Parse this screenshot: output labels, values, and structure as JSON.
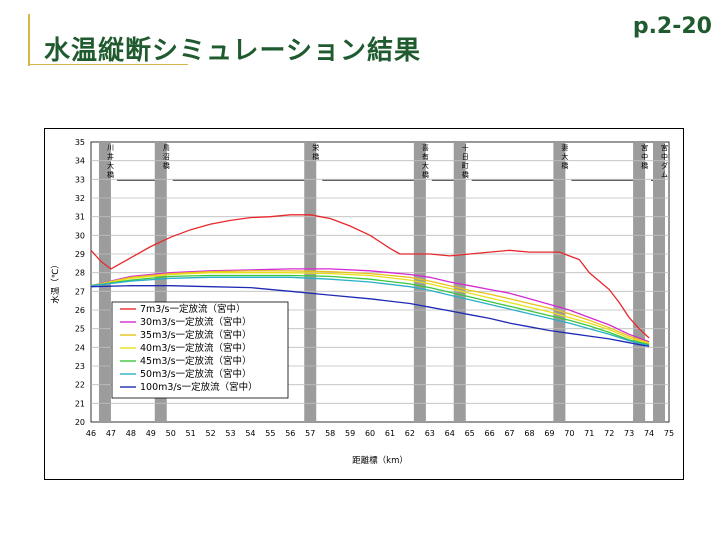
{
  "header": {
    "title": "水温縦断シミュレーション結果",
    "page_number": "p.2-20"
  },
  "chart_data": {
    "type": "line",
    "xlabel": "距離標（km）",
    "ylabel": "水温（℃）",
    "xlim": [
      46,
      75
    ],
    "ylim": [
      20,
      35
    ],
    "x_ticks": [
      46,
      47,
      48,
      49,
      50,
      51,
      52,
      53,
      54,
      55,
      56,
      57,
      58,
      59,
      60,
      61,
      62,
      63,
      64,
      65,
      66,
      67,
      68,
      69,
      70,
      71,
      72,
      73,
      74,
      75
    ],
    "y_ticks": [
      20,
      21,
      22,
      23,
      24,
      25,
      26,
      27,
      28,
      29,
      30,
      31,
      32,
      33,
      34,
      35
    ],
    "legend_position": "lower-left",
    "bridges": [
      {
        "x": 46.7,
        "label": "川井大橋"
      },
      {
        "x": 49.5,
        "label": "鳥沼橋"
      },
      {
        "x": 57.0,
        "label": "栄橋"
      },
      {
        "x": 62.5,
        "label": "喜有大橋"
      },
      {
        "x": 64.5,
        "label": "十日町橋"
      },
      {
        "x": 69.5,
        "label": "妻大橋"
      },
      {
        "x": 73.5,
        "label": "宮中橋"
      },
      {
        "x": 74.5,
        "label": "宮中ダム"
      }
    ],
    "series": [
      {
        "name": "7m3/s一定放流（宮中）",
        "color": "#e8282d",
        "x": [
          46,
          46.5,
          47,
          47.5,
          48,
          49,
          50,
          51,
          52,
          53,
          54,
          55,
          56,
          57,
          57.5,
          58,
          59,
          60,
          61,
          61.5,
          62,
          63,
          64,
          65,
          66,
          67,
          68,
          69,
          69.5,
          70,
          70.5,
          71,
          72,
          72.5,
          73,
          73.5,
          74
        ],
        "y": [
          29.2,
          28.6,
          28.2,
          28.5,
          28.8,
          29.4,
          29.9,
          30.3,
          30.6,
          30.8,
          30.95,
          31.0,
          31.1,
          31.1,
          31.0,
          30.9,
          30.5,
          30.0,
          29.3,
          29.0,
          29.0,
          29.0,
          28.9,
          29.0,
          29.1,
          29.2,
          29.1,
          29.1,
          29.1,
          28.9,
          28.7,
          28.0,
          27.1,
          26.4,
          25.6,
          25.0,
          24.5
        ]
      },
      {
        "name": "30m3/s一定放流（宮中）",
        "color": "#d42ad4",
        "x": [
          46,
          48,
          50,
          52,
          54,
          56,
          58,
          60,
          62,
          63,
          64,
          65,
          66,
          67,
          68,
          69,
          70,
          71,
          72,
          73,
          74
        ],
        "y": [
          27.3,
          27.8,
          28.0,
          28.1,
          28.15,
          28.2,
          28.2,
          28.1,
          27.9,
          27.75,
          27.5,
          27.3,
          27.1,
          26.9,
          26.6,
          26.3,
          26.0,
          25.6,
          25.2,
          24.7,
          24.3
        ]
      },
      {
        "name": "35m3/s一定放流（宮中）",
        "color": "#e8c21c",
        "x": [
          46,
          48,
          50,
          52,
          54,
          56,
          58,
          60,
          62,
          63,
          64,
          65,
          66,
          67,
          68,
          69,
          70,
          71,
          72,
          73,
          74
        ],
        "y": [
          27.3,
          27.75,
          27.95,
          28.05,
          28.1,
          28.1,
          28.05,
          27.95,
          27.75,
          27.55,
          27.3,
          27.05,
          26.85,
          26.6,
          26.35,
          26.1,
          25.8,
          25.45,
          25.05,
          24.6,
          24.25
        ]
      },
      {
        "name": "40m3/s一定放流（宮中）",
        "color": "#e8e01c",
        "x": [
          46,
          48,
          50,
          52,
          54,
          56,
          58,
          60,
          62,
          63,
          64,
          65,
          66,
          67,
          68,
          69,
          70,
          71,
          72,
          73,
          74
        ],
        "y": [
          27.3,
          27.7,
          27.9,
          28.0,
          28.0,
          28.0,
          27.95,
          27.85,
          27.6,
          27.4,
          27.15,
          26.9,
          26.65,
          26.4,
          26.15,
          25.9,
          25.6,
          25.3,
          24.95,
          24.5,
          24.2
        ]
      },
      {
        "name": "45m3/s一定放流（宮中）",
        "color": "#3cc83c",
        "x": [
          46,
          48,
          50,
          52,
          54,
          56,
          58,
          60,
          62,
          63,
          64,
          65,
          66,
          67,
          68,
          69,
          70,
          71,
          72,
          73,
          74
        ],
        "y": [
          27.3,
          27.6,
          27.8,
          27.85,
          27.85,
          27.85,
          27.8,
          27.65,
          27.4,
          27.2,
          26.95,
          26.7,
          26.45,
          26.2,
          25.95,
          25.7,
          25.45,
          25.15,
          24.8,
          24.4,
          24.15
        ]
      },
      {
        "name": "50m3/s一定放流（宮中）",
        "color": "#2ab0c8",
        "x": [
          46,
          48,
          50,
          52,
          54,
          56,
          58,
          60,
          62,
          63,
          64,
          65,
          66,
          67,
          68,
          69,
          70,
          71,
          72,
          73,
          74
        ],
        "y": [
          27.3,
          27.55,
          27.7,
          27.75,
          27.75,
          27.75,
          27.65,
          27.5,
          27.25,
          27.05,
          26.8,
          26.55,
          26.3,
          26.05,
          25.8,
          25.55,
          25.3,
          25.0,
          24.7,
          24.35,
          24.1
        ]
      },
      {
        "name": "100m3/s一定放流（宮中）",
        "color": "#1f2ab4",
        "x": [
          46,
          48,
          50,
          52,
          54,
          56,
          58,
          60,
          62,
          63,
          64,
          65,
          66,
          67,
          68,
          69,
          70,
          71,
          72,
          73,
          74
        ],
        "y": [
          27.25,
          27.3,
          27.3,
          27.25,
          27.2,
          27.0,
          26.8,
          26.6,
          26.35,
          26.15,
          25.95,
          25.75,
          25.55,
          25.3,
          25.1,
          24.9,
          24.75,
          24.6,
          24.45,
          24.25,
          24.05
        ]
      }
    ]
  }
}
